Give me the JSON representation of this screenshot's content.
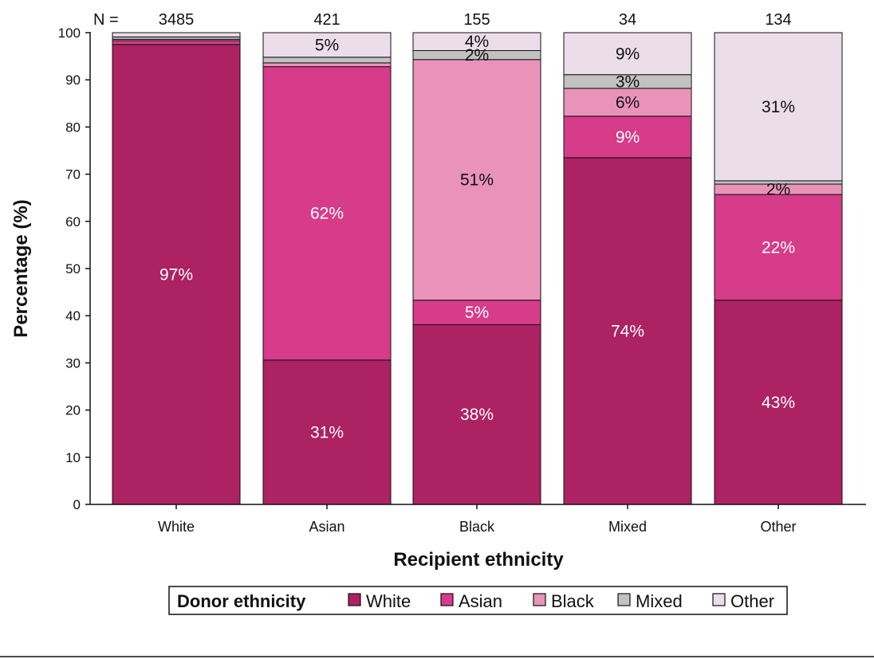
{
  "chart_data": {
    "type": "bar",
    "stacked": true,
    "title": "",
    "xlabel": "Recipient ethnicity",
    "ylabel": "Percentage (%)",
    "ylim": [
      0,
      100
    ],
    "yticks": [
      0,
      10,
      20,
      30,
      40,
      50,
      60,
      70,
      80,
      90,
      100
    ],
    "grid": false,
    "n_prefix": "N =",
    "categories": [
      "White",
      "Asian",
      "Black",
      "Mixed",
      "Other"
    ],
    "n_values": [
      "3485",
      "421",
      "155",
      "34",
      "134"
    ],
    "legend_title": "Donor ethnicity",
    "legend_position": "bottom",
    "series": [
      {
        "name": "White",
        "color": "#AD2263",
        "label_color": "#ffffff",
        "values": [
          97.5,
          30.6,
          38.1,
          73.5,
          43.3
        ],
        "labels": [
          "97%",
          "31%",
          "38%",
          "74%",
          "43%"
        ]
      },
      {
        "name": "Asian",
        "color": "#D63C8A",
        "label_color": "#ffffff",
        "values": [
          0.8,
          62.2,
          5.2,
          8.8,
          22.4
        ],
        "labels": [
          "",
          "62%",
          "5%",
          "9%",
          "22%"
        ]
      },
      {
        "name": "Black",
        "color": "#E993BB",
        "label_color": "#111111",
        "values": [
          0.3,
          0.8,
          51.0,
          5.9,
          2.2
        ],
        "labels": [
          "",
          "",
          "51%",
          "6%",
          "2%"
        ]
      },
      {
        "name": "Mixed",
        "color": "#C2C2C2",
        "label_color": "#111111",
        "values": [
          0.5,
          1.2,
          1.9,
          2.9,
          0.7
        ],
        "labels": [
          "",
          "",
          "2%",
          "3%",
          ""
        ]
      },
      {
        "name": "Other",
        "color": "#EBDDEA",
        "label_color": "#111111",
        "values": [
          0.9,
          5.2,
          3.8,
          8.9,
          31.4
        ],
        "labels": [
          "",
          "5%",
          "4%",
          "9%",
          "31%"
        ]
      }
    ]
  }
}
